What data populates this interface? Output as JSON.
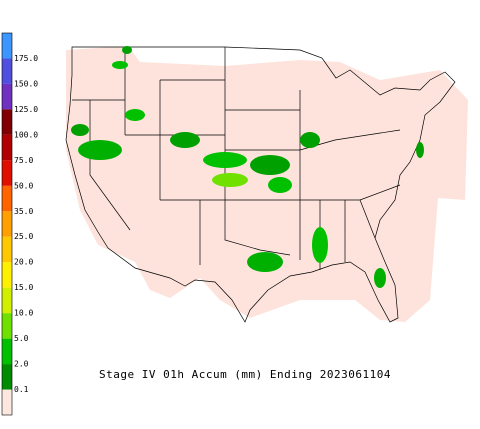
{
  "colorbar": {
    "labels": [
      "0.1",
      "2.0",
      "5.0",
      "10.0",
      "15.0",
      "20.0",
      "25.0",
      "35.0",
      "50.0",
      "75.0",
      "100.0",
      "125.0",
      "150.0",
      "175.0"
    ],
    "colors": [
      "#fde8e0",
      "#008c00",
      "#00c000",
      "#70e000",
      "#d0f000",
      "#fff000",
      "#ffc800",
      "#ffa000",
      "#ff6400",
      "#e01000",
      "#b00000",
      "#800000",
      "#7030c0",
      "#5050e0",
      "#3c96ff"
    ]
  },
  "title": "Stage IV 01h Accum (mm) Ending 2023061104"
}
